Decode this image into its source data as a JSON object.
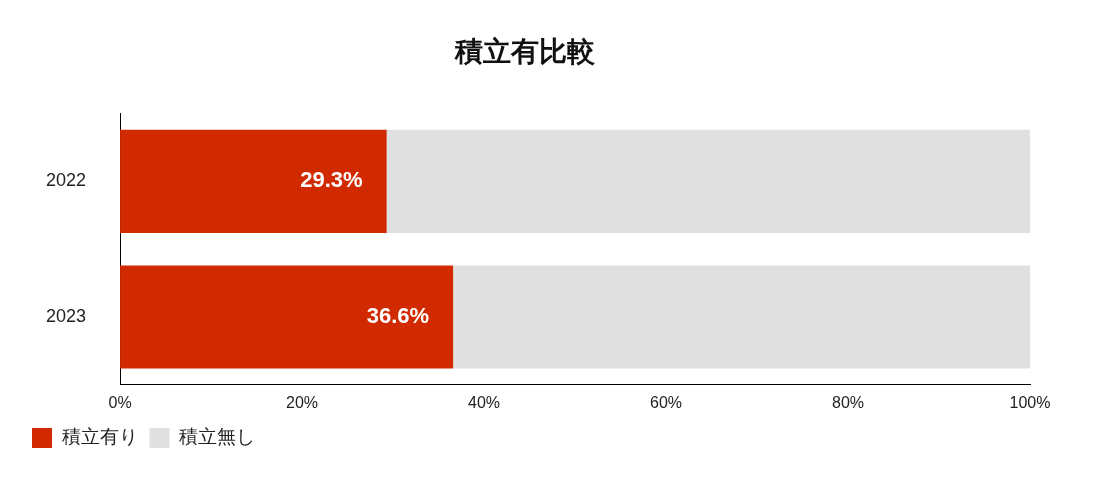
{
  "chart_data": {
    "type": "bar",
    "title": "積立有比較",
    "orientation": "horizontal",
    "stacked": true,
    "categories": [
      "2022",
      "2023"
    ],
    "series": [
      {
        "name": "積立有り",
        "color": "#d12a00",
        "values": [
          29.3,
          36.6
        ],
        "value_labels": [
          "29.3%",
          "36.6%"
        ]
      },
      {
        "name": "積立無し",
        "color": "#e0e0e0",
        "values": [
          70.7,
          63.4
        ]
      }
    ],
    "xlim": [
      0,
      100
    ],
    "xticks": [
      {
        "value": 0,
        "label": "0%"
      },
      {
        "value": 20,
        "label": "20%"
      },
      {
        "value": 40,
        "label": "40%"
      },
      {
        "value": 60,
        "label": "60%"
      },
      {
        "value": 80,
        "label": "80%"
      },
      {
        "value": 100,
        "label": "100%"
      }
    ],
    "grid": false,
    "legend": "bottom left"
  }
}
